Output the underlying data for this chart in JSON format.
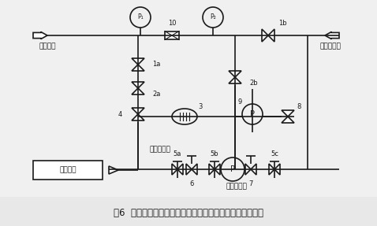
{
  "title": "图6  增加电磁阀及气动三通切换阀凝结水机封水系统示意图",
  "bg_color": "#f5f5f5",
  "line_color": "#1a1a1a",
  "labels": {
    "demineralized_water": "除盐水来",
    "condensate_outlet": "凝结水出口",
    "mech_seal_water": "机封密封水",
    "mech_seal_flush": "机封冲洗水",
    "mech_seal_box": "机械密封"
  },
  "numbers": [
    "1a",
    "1b",
    "2a",
    "2b",
    "3",
    "4",
    "5a",
    "5b",
    "5c",
    "6",
    "7",
    "8",
    "9",
    "10"
  ]
}
